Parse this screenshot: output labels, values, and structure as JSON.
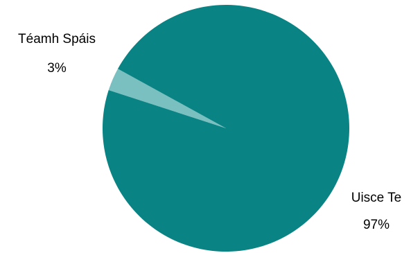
{
  "chart_data": {
    "type": "pie",
    "slices": [
      {
        "label": "Téamh Spáis",
        "value": 3,
        "value_label": "3%",
        "color": "#7bc0c0"
      },
      {
        "label": "Uisce Te",
        "value": 97,
        "value_label": "97%",
        "color": "#098383"
      }
    ],
    "legend": "none",
    "data_labels": "outside"
  }
}
